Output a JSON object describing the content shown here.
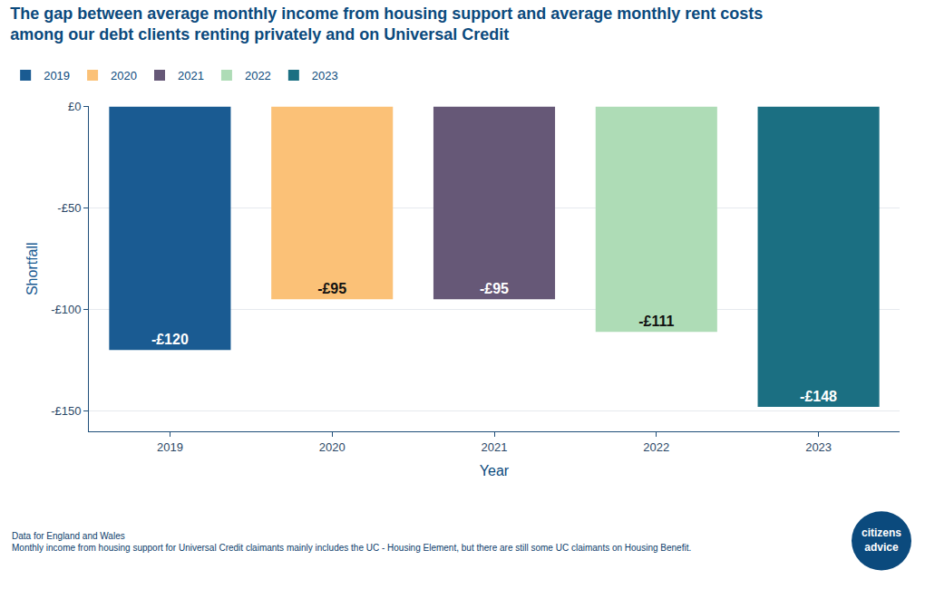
{
  "chart_data": {
    "type": "bar",
    "title": "The gap between average monthly income from housing support and average monthly rent costs\namong our debt clients renting privately and on Universal Credit",
    "x_label": "Year",
    "y_label": "Shortfall",
    "categories": [
      "2019",
      "2020",
      "2021",
      "2022",
      "2023"
    ],
    "values": [
      -120,
      -95,
      -95,
      -111,
      -148
    ],
    "value_labels": [
      "-£120",
      "-£95",
      "-£95",
      "-£111",
      "-£148"
    ],
    "colors": [
      "#1a5b92",
      "#fbc177",
      "#665877",
      "#aedcb6",
      "#1b6f82"
    ],
    "ylim": [
      -160,
      0
    ],
    "yticks": [
      {
        "value": 0,
        "label": "£0"
      },
      {
        "value": -50,
        "label": "-£50"
      },
      {
        "value": -100,
        "label": "-£100"
      },
      {
        "value": -150,
        "label": "-£150"
      }
    ],
    "grid": true,
    "legend": "top-left",
    "data_labels": true,
    "notes": [
      "Data for England and Wales",
      "Monthly income from housing support for Universal Credit claimants mainly includes the UC - Housing Element, but there are still some UC claimants on Housing Benefit."
    ],
    "logo": [
      "citizens",
      "advice"
    ]
  }
}
